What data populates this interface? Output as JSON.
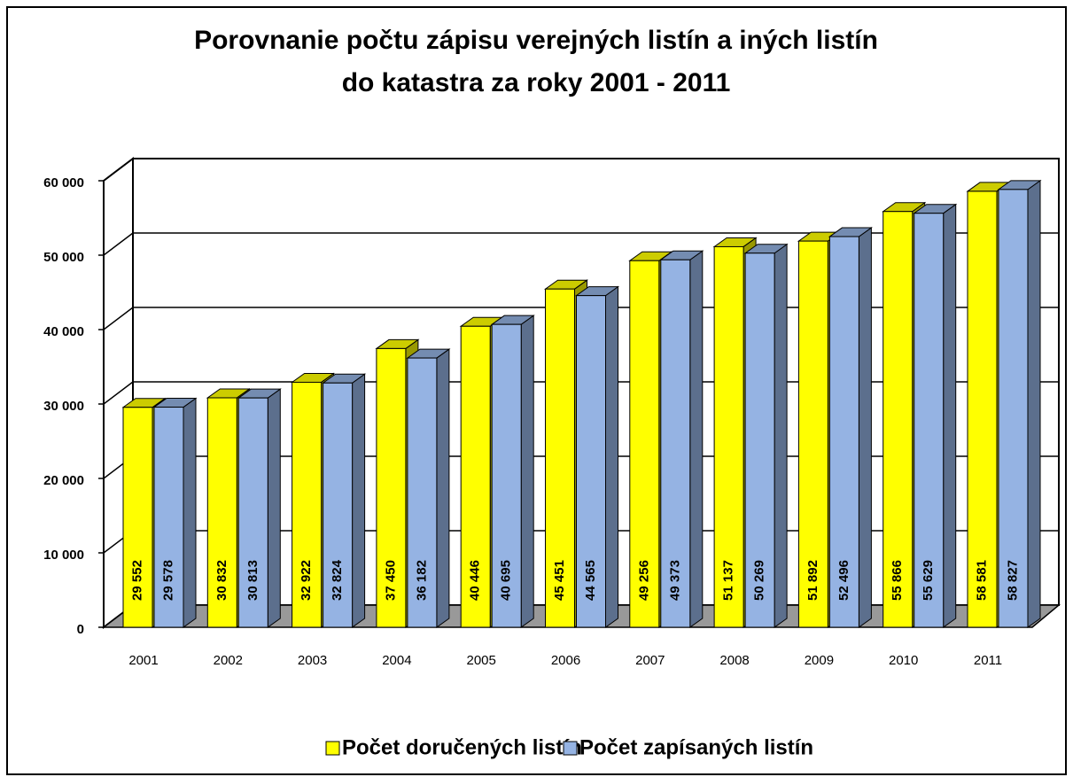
{
  "chart_data": {
    "type": "bar3d",
    "title": [
      "Porovnanie počtu zápisu verejných listín a iných listín",
      "do katastra za roky 2001 - 2011"
    ],
    "categories": [
      "2001",
      "2002",
      "2003",
      "2004",
      "2005",
      "2006",
      "2007",
      "2008",
      "2009",
      "2010",
      "2011"
    ],
    "series": [
      {
        "name": "Počet doručených listín",
        "color": "#ffff00",
        "values": [
          29552,
          30832,
          32922,
          37450,
          40446,
          45451,
          49256,
          51137,
          51892,
          55866,
          58581
        ],
        "value_labels": [
          "29 552",
          "30 832",
          "32 922",
          "37 450",
          "40 446",
          "45 451",
          "49 256",
          "51 137",
          "51 892",
          "55 866",
          "58 581"
        ]
      },
      {
        "name": "Počet zapísaných listín",
        "color": "#95b3e3",
        "values": [
          29578,
          30813,
          32824,
          36182,
          40695,
          44565,
          49373,
          50269,
          52496,
          55629,
          58827
        ],
        "value_labels": [
          "29 578",
          "30 813",
          "32 824",
          "36 182",
          "40 695",
          "44 565",
          "49 373",
          "50 269",
          "52 496",
          "55 629",
          "58 827"
        ]
      }
    ],
    "ylim": [
      0,
      60000
    ],
    "yticks": [
      0,
      {
        "value": 10000,
        "label": "10 000"
      },
      {
        "value": 20000,
        "label": "20 000"
      },
      {
        "value": 30000,
        "label": "30 000"
      },
      {
        "value": 40000,
        "label": "40 000"
      },
      {
        "value": 50000,
        "label": "50 000"
      },
      {
        "value": 60000,
        "label": "60 000"
      }
    ],
    "grid": true,
    "legend": "bottom"
  }
}
